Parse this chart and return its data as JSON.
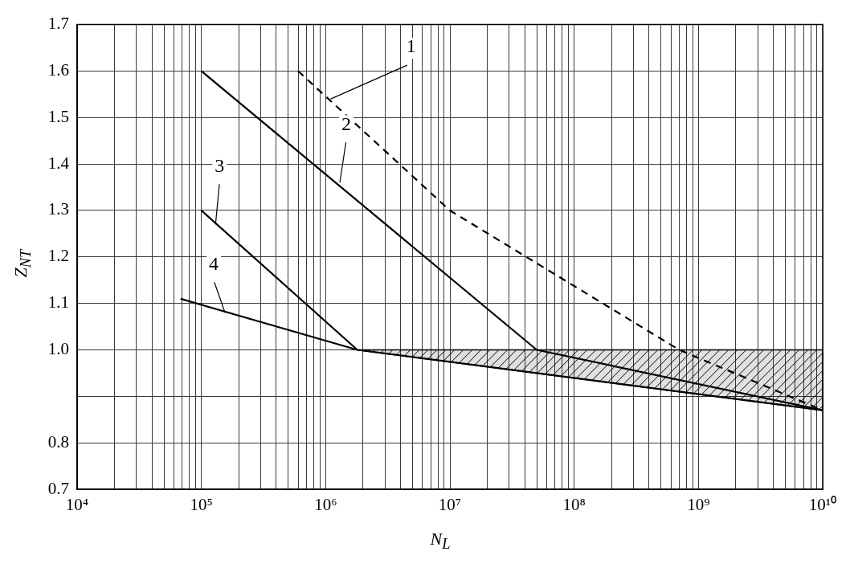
{
  "chart_data": {
    "type": "line",
    "xlabel": "N$_{L}$",
    "ylabel": "Z$_{NT}$",
    "log": "x",
    "grid": true,
    "legend": false,
    "marker": "none",
    "line_style": "solid",
    "xlim": [
      10000,
      10000000000
    ],
    "ylim": [
      0.7,
      1.7
    ],
    "xticks": [
      {
        "value": 10000,
        "label": "10⁴"
      },
      {
        "value": 20000,
        "label": null
      },
      {
        "value": 30000,
        "label": null
      },
      {
        "value": 40000,
        "label": null
      },
      {
        "value": 50000,
        "label": null
      },
      {
        "value": 60000,
        "label": null
      },
      {
        "value": 70000,
        "label": null
      },
      {
        "value": 80000,
        "label": null
      },
      {
        "value": 90000,
        "label": null
      },
      {
        "value": 100000,
        "label": "10⁵"
      },
      {
        "value": 200000,
        "label": null
      },
      {
        "value": 300000,
        "label": null
      },
      {
        "value": 400000,
        "label": null
      },
      {
        "value": 500000,
        "label": null
      },
      {
        "value": 600000,
        "label": null
      },
      {
        "value": 700000,
        "label": null
      },
      {
        "value": 800000,
        "label": null
      },
      {
        "value": 900000,
        "label": null
      },
      {
        "value": 1000000,
        "label": "10⁶"
      },
      {
        "value": 2000000,
        "label": null
      },
      {
        "value": 3000000,
        "label": null
      },
      {
        "value": 4000000,
        "label": null
      },
      {
        "value": 5000000,
        "label": null
      },
      {
        "value": 6000000,
        "label": null
      },
      {
        "value": 7000000,
        "label": null
      },
      {
        "value": 8000000,
        "label": null
      },
      {
        "value": 9000000,
        "label": null
      },
      {
        "value": 10000000,
        "label": "10⁷"
      },
      {
        "value": 20000000,
        "label": null
      },
      {
        "value": 30000000,
        "label": null
      },
      {
        "value": 40000000,
        "label": null
      },
      {
        "value": 50000000,
        "label": null
      },
      {
        "value": 60000000,
        "label": null
      },
      {
        "value": 70000000,
        "label": null
      },
      {
        "value": 80000000,
        "label": null
      },
      {
        "value": 90000000,
        "label": null
      },
      {
        "value": 100000000,
        "label": "10⁸"
      },
      {
        "value": 200000000,
        "label": null
      },
      {
        "value": 300000000,
        "label": null
      },
      {
        "value": 400000000,
        "label": null
      },
      {
        "value": 500000000,
        "label": null
      },
      {
        "value": 600000000,
        "label": null
      },
      {
        "value": 700000000,
        "label": null
      },
      {
        "value": 800000000,
        "label": null
      },
      {
        "value": 900000000,
        "label": null
      },
      {
        "value": 1000000000,
        "label": "10⁹"
      },
      {
        "value": 2000000000,
        "label": null
      },
      {
        "value": 3000000000,
        "label": null
      },
      {
        "value": 4000000000,
        "label": null
      },
      {
        "value": 5000000000,
        "label": null
      },
      {
        "value": 6000000000,
        "label": null
      },
      {
        "value": 7000000000,
        "label": null
      },
      {
        "value": 8000000000,
        "label": null
      },
      {
        "value": 9000000000,
        "label": null
      },
      {
        "value": 10000000000,
        "label": "10¹⁰"
      }
    ],
    "yticks": [
      0.7,
      0.8,
      {
        "value": 0.9,
        "label": null
      },
      "1.0",
      1.1,
      1.2,
      1.3,
      1.4,
      1.5,
      1.6,
      1.7
    ],
    "series": [
      {
        "color": "#000000",
        "line_style": "dashed",
        "x": [
          600000,
          10000000,
          700000000,
          10000000000
        ],
        "values": [
          1.6,
          1.3,
          1.0,
          0.87
        ]
      },
      {
        "color": "#000000",
        "x": [
          100000,
          50000000,
          10000000000
        ],
        "values": [
          1.6,
          1.0,
          0.87
        ]
      },
      {
        "color": "#000000",
        "x": [
          100000,
          1800000,
          10000000000
        ],
        "values": [
          1.3,
          1.0,
          0.87
        ],
        "lower": [
          null,
          1.0,
          0.87
        ],
        "upper": [
          null,
          1.0,
          1.0
        ]
      },
      {
        "color": "#000000",
        "x": [
          68000,
          1800000
        ],
        "values": [
          1.11,
          1.0
        ]
      }
    ],
    "annotations": [
      {
        "text": "1",
        "x": 1100000,
        "y": 1.54
      },
      {
        "text": "2",
        "x": 1300000,
        "y": 1.36
      },
      {
        "text": "3",
        "x": 130000,
        "y": 1.27
      },
      {
        "text": "4",
        "x": 155000,
        "y": 1.08
      }
    ]
  }
}
